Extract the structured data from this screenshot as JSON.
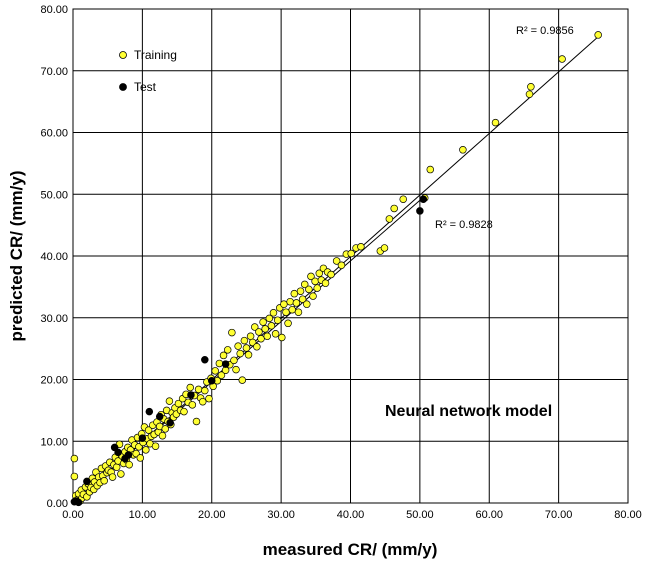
{
  "chart_data": {
    "type": "scatter",
    "xlabel": "measured CR/ (mm/y)",
    "ylabel": "predicted CR/ (mm/y)",
    "xlim": [
      0,
      80
    ],
    "ylim": [
      0,
      80
    ],
    "x_ticks": [
      "0.00",
      "10.00",
      "20.00",
      "30.00",
      "40.00",
      "50.00",
      "60.00",
      "70.00",
      "80.00"
    ],
    "y_ticks": [
      "0.00",
      "10.00",
      "20.00",
      "30.00",
      "40.00",
      "50.00",
      "60.00",
      "70.00",
      "80.00"
    ],
    "grid": true,
    "legend_position": "top-left",
    "model_label": "Neural network model",
    "series": [
      {
        "name": "Training",
        "color": "#ffff33",
        "r2_label": "R² = 0.9856",
        "trendline": [
          [
            0,
            0
          ],
          [
            75.7,
            75.5
          ]
        ],
        "points": [
          [
            0.2,
            7.2
          ],
          [
            0.2,
            4.3
          ],
          [
            0.4,
            1.2
          ],
          [
            0.6,
            0.5
          ],
          [
            0.8,
            1.5
          ],
          [
            1.0,
            0.3
          ],
          [
            1.2,
            2.1
          ],
          [
            1.3,
            0.8
          ],
          [
            1.5,
            1.4
          ],
          [
            1.8,
            2.6
          ],
          [
            2.0,
            1.0
          ],
          [
            2.2,
            3.1
          ],
          [
            2.4,
            1.8
          ],
          [
            2.6,
            2.5
          ],
          [
            2.8,
            4.0
          ],
          [
            3.0,
            2.2
          ],
          [
            3.1,
            3.4
          ],
          [
            3.3,
            5.0
          ],
          [
            3.5,
            2.8
          ],
          [
            3.7,
            4.2
          ],
          [
            3.9,
            3.3
          ],
          [
            4.1,
            5.6
          ],
          [
            4.3,
            4.4
          ],
          [
            4.5,
            3.6
          ],
          [
            4.7,
            6.0
          ],
          [
            4.9,
            4.9
          ],
          [
            5.1,
            5.3
          ],
          [
            5.3,
            6.6
          ],
          [
            5.5,
            5.0
          ],
          [
            5.7,
            4.2
          ],
          [
            5.9,
            6.2
          ],
          [
            6.1,
            7.4
          ],
          [
            6.3,
            5.8
          ],
          [
            6.5,
            6.8
          ],
          [
            6.7,
            9.5
          ],
          [
            6.9,
            4.7
          ],
          [
            7.1,
            7.6
          ],
          [
            7.3,
            6.4
          ],
          [
            7.5,
            8.3
          ],
          [
            7.7,
            7.0
          ],
          [
            7.9,
            9.0
          ],
          [
            8.1,
            6.2
          ],
          [
            8.3,
            8.6
          ],
          [
            8.5,
            10.2
          ],
          [
            8.7,
            7.8
          ],
          [
            8.9,
            9.4
          ],
          [
            9.1,
            8.0
          ],
          [
            9.3,
            10.6
          ],
          [
            9.5,
            9.1
          ],
          [
            9.7,
            7.3
          ],
          [
            9.9,
            11.2
          ],
          [
            10.1,
            9.8
          ],
          [
            10.3,
            12.3
          ],
          [
            10.5,
            8.6
          ],
          [
            10.7,
            10.4
          ],
          [
            10.9,
            11.8
          ],
          [
            11.1,
            9.6
          ],
          [
            11.3,
            10.8
          ],
          [
            11.5,
            12.6
          ],
          [
            11.7,
            11.1
          ],
          [
            11.9,
            9.2
          ],
          [
            12.1,
            13.1
          ],
          [
            12.3,
            11.5
          ],
          [
            12.5,
            12.4
          ],
          [
            12.7,
            14.3
          ],
          [
            12.9,
            10.9
          ],
          [
            13.1,
            13.6
          ],
          [
            13.3,
            12.0
          ],
          [
            13.5,
            15.0
          ],
          [
            13.7,
            13.2
          ],
          [
            13.9,
            16.5
          ],
          [
            14.1,
            12.7
          ],
          [
            14.3,
            14.6
          ],
          [
            14.5,
            13.9
          ],
          [
            14.7,
            15.4
          ],
          [
            14.9,
            14.4
          ],
          [
            15.2,
            16.1
          ],
          [
            15.5,
            15.0
          ],
          [
            15.8,
            16.9
          ],
          [
            16.0,
            14.8
          ],
          [
            16.3,
            17.6
          ],
          [
            16.6,
            16.3
          ],
          [
            16.9,
            18.7
          ],
          [
            17.2,
            15.9
          ],
          [
            17.5,
            17.4
          ],
          [
            17.8,
            13.2
          ],
          [
            18.1,
            18.4
          ],
          [
            18.4,
            17.0
          ],
          [
            18.7,
            16.4
          ],
          [
            19.0,
            18.2
          ],
          [
            19.3,
            19.6
          ],
          [
            19.6,
            16.9
          ],
          [
            19.9,
            20.2
          ],
          [
            20.2,
            18.9
          ],
          [
            20.5,
            21.4
          ],
          [
            20.8,
            19.8
          ],
          [
            21.1,
            22.6
          ],
          [
            21.4,
            20.7
          ],
          [
            21.7,
            23.9
          ],
          [
            22.0,
            21.5
          ],
          [
            22.3,
            24.8
          ],
          [
            22.6,
            22.4
          ],
          [
            22.9,
            27.6
          ],
          [
            23.2,
            23.1
          ],
          [
            23.5,
            21.6
          ],
          [
            23.8,
            25.4
          ],
          [
            24.1,
            24.2
          ],
          [
            24.4,
            19.9
          ],
          [
            24.7,
            26.3
          ],
          [
            25.0,
            25.1
          ],
          [
            25.3,
            24.0
          ],
          [
            25.6,
            27.0
          ],
          [
            25.9,
            26.0
          ],
          [
            26.2,
            28.5
          ],
          [
            26.5,
            25.3
          ],
          [
            26.8,
            27.7
          ],
          [
            27.1,
            26.6
          ],
          [
            27.4,
            29.3
          ],
          [
            27.7,
            28.2
          ],
          [
            28.0,
            27.0
          ],
          [
            28.3,
            29.9
          ],
          [
            28.6,
            28.7
          ],
          [
            28.9,
            30.8
          ],
          [
            29.2,
            27.4
          ],
          [
            29.5,
            29.6
          ],
          [
            29.8,
            31.6
          ],
          [
            30.1,
            26.8
          ],
          [
            30.4,
            32.2
          ],
          [
            30.7,
            30.9
          ],
          [
            31.0,
            29.1
          ],
          [
            31.3,
            32.6
          ],
          [
            31.6,
            31.3
          ],
          [
            31.9,
            33.9
          ],
          [
            32.2,
            32.4
          ],
          [
            32.5,
            30.9
          ],
          [
            32.8,
            34.3
          ],
          [
            33.1,
            33.0
          ],
          [
            33.4,
            35.4
          ],
          [
            33.7,
            32.2
          ],
          [
            34.0,
            34.6
          ],
          [
            34.3,
            36.7
          ],
          [
            34.6,
            33.5
          ],
          [
            34.9,
            35.9
          ],
          [
            35.2,
            34.8
          ],
          [
            35.5,
            37.2
          ],
          [
            35.8,
            36.1
          ],
          [
            36.1,
            38.0
          ],
          [
            36.4,
            35.6
          ],
          [
            36.7,
            37.4
          ],
          [
            37.2,
            37.0
          ],
          [
            38.0,
            39.2
          ],
          [
            38.7,
            38.5
          ],
          [
            39.4,
            40.3
          ],
          [
            40.1,
            40.4
          ],
          [
            40.8,
            41.3
          ],
          [
            41.5,
            41.5
          ],
          [
            44.3,
            40.8
          ],
          [
            44.9,
            41.3
          ],
          [
            45.6,
            46.0
          ],
          [
            46.3,
            47.7
          ],
          [
            47.6,
            49.2
          ],
          [
            50.7,
            49.4
          ],
          [
            51.5,
            54.0
          ],
          [
            56.2,
            57.2
          ],
          [
            60.9,
            61.6
          ],
          [
            65.8,
            66.2
          ],
          [
            66.0,
            67.4
          ],
          [
            70.5,
            71.9
          ],
          [
            75.7,
            75.8
          ]
        ]
      },
      {
        "name": "Test",
        "color": "#000000",
        "r2_label": "R² = 0.9828",
        "trendline": [
          [
            0,
            0
          ],
          [
            50.8,
            49.8
          ]
        ],
        "points": [
          [
            0.2,
            0.2
          ],
          [
            0.5,
            0.3
          ],
          [
            0.8,
            0.1
          ],
          [
            2.0,
            3.5
          ],
          [
            6.0,
            9.0
          ],
          [
            6.5,
            8.2
          ],
          [
            7.5,
            7.2
          ],
          [
            8.0,
            7.8
          ],
          [
            10.0,
            10.5
          ],
          [
            11.0,
            14.8
          ],
          [
            12.5,
            14.0
          ],
          [
            14.0,
            13.0
          ],
          [
            17.0,
            17.5
          ],
          [
            19.0,
            23.2
          ],
          [
            20.0,
            19.8
          ],
          [
            22.0,
            22.5
          ],
          [
            50.0,
            47.3
          ],
          [
            50.5,
            49.2
          ]
        ]
      }
    ]
  }
}
